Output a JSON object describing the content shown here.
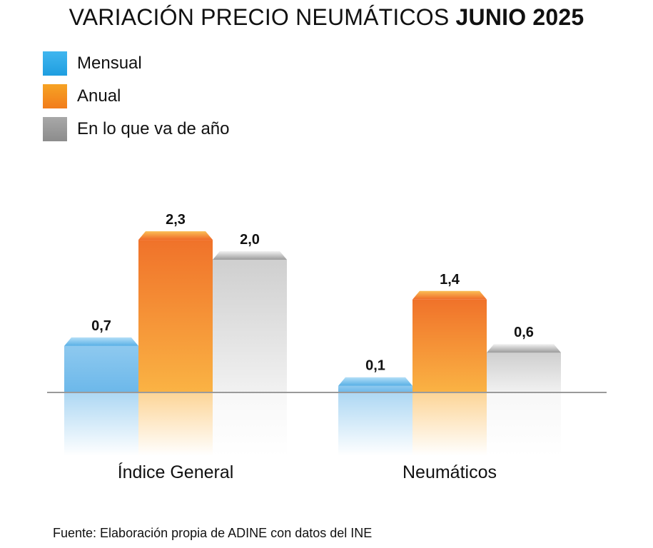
{
  "title": {
    "prefix": "VARIACIÓN PRECIO NEUMÁTICOS",
    "highlight": "JUNIO 2025"
  },
  "legend": [
    {
      "label": "Mensual",
      "color": "#2aa9e6"
    },
    {
      "label": "Anual",
      "color": "#f7941d"
    },
    {
      "label": "En lo que va de año",
      "color": "#939393"
    }
  ],
  "chart_data": {
    "type": "bar",
    "title": "VARIACIÓN PRECIO NEUMÁTICOS JUNIO 2025",
    "categories": [
      "Índice General",
      "Neumáticos"
    ],
    "series": [
      {
        "name": "Mensual",
        "values": [
          0.7,
          0.1
        ],
        "labels": [
          "0,7",
          "0,1"
        ],
        "color": "#2aa9e6"
      },
      {
        "name": "Anual",
        "values": [
          2.3,
          1.4
        ],
        "labels": [
          "2,3",
          "1,4"
        ],
        "color": "#f7941d"
      },
      {
        "name": "En lo que va de año",
        "values": [
          2.0,
          0.6
        ],
        "labels": [
          "2,0",
          "0,6"
        ],
        "color": "#939393"
      }
    ],
    "grid": false,
    "legend_position": "top-left"
  },
  "source": "Fuente: Elaboración propia de ADINE con datos del INE"
}
